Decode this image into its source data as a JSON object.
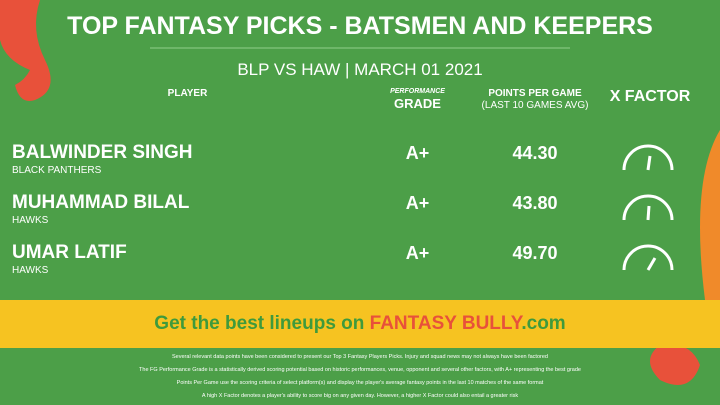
{
  "header": {
    "title": "TOP FANTASY PICKS - BATSMEN AND KEEPERS",
    "match": "BLP VS HAW",
    "date": "MARCH 01 2021"
  },
  "columns": {
    "player": "PLAYER",
    "grade_small": "PERFORMANCE",
    "grade": "GRADE",
    "points": "POINTS PER GAME",
    "points_sub": "(LAST 10 GAMES AVG)",
    "xfactor": "X FACTOR"
  },
  "rows": [
    {
      "name": "BALWINDER SINGH",
      "team": "BLACK PANTHERS",
      "grade": "A+",
      "points": "44.30"
    },
    {
      "name": "MUHAMMAD BILAL",
      "team": "HAWKS",
      "grade": "A+",
      "points": "43.80"
    },
    {
      "name": "UMAR LATIF",
      "team": "HAWKS",
      "grade": "A+",
      "points": "49.70"
    }
  ],
  "banner": {
    "text": "Get the best lineups on",
    "brand": "FANTASY BULLY",
    "suffix": ".com"
  },
  "footnotes": [
    "Several relevant data points have been considered to present our Top 3 Fantasy Players Picks. Injury and squad news may not always have been factored",
    "The FG Performance Grade is a statistically derived scoring potential based on historic performances, venue, opponent and several other factors, with A+ representing the best grade",
    "Points Per Game use the scoring criteria of select platform(s) and display the player's average fantasy points in the last 10 matches of the same format",
    "A high X Factor denotes a player's ability to score big on any given day. However, a higher X Factor could also entail a greater risk"
  ]
}
